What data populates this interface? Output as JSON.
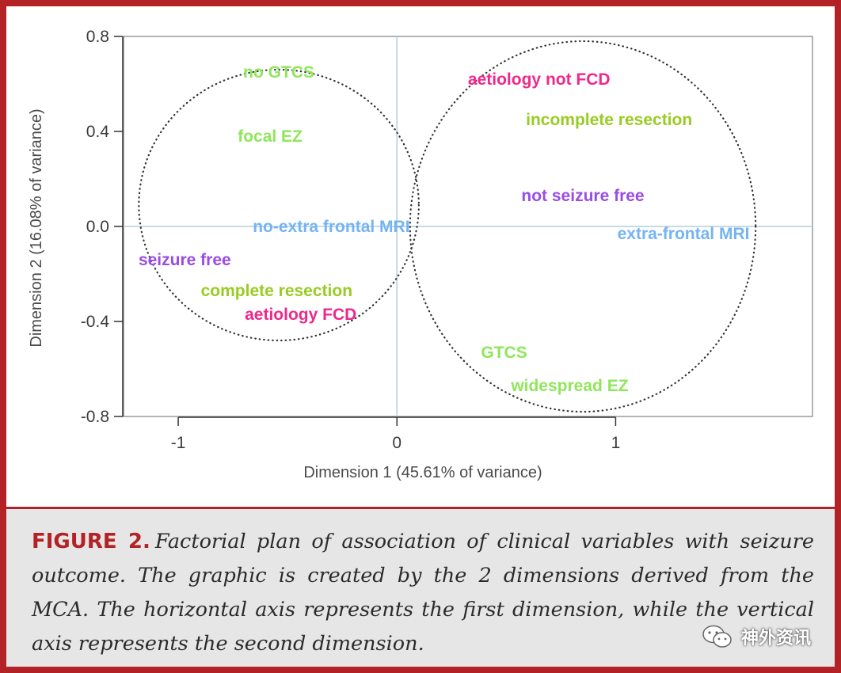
{
  "chart_data": {
    "type": "scatter",
    "xlabel": "Dimension 1 (45.61% of variance)",
    "ylabel": "Dimension 2 (16.08% of variance)",
    "xlim": [
      -1.25,
      1.9
    ],
    "ylim": [
      -0.8,
      0.8
    ],
    "x_ticks": [
      -1,
      0,
      1
    ],
    "x_tick_labels": [
      "-1",
      "0",
      "1"
    ],
    "y_ticks": [
      0.8,
      0.4,
      0.0,
      -0.4,
      -0.8
    ],
    "y_tick_labels": [
      "0.8",
      "0.4",
      "0.0",
      "-0.4",
      "-0.8"
    ],
    "reference_lines": {
      "x": 0,
      "y": 0
    },
    "points": [
      {
        "label": "no GTCS",
        "x": -0.54,
        "y": 0.65,
        "color": "#8ee65a"
      },
      {
        "label": "focal EZ",
        "x": -0.58,
        "y": 0.38,
        "color": "#8ee65a"
      },
      {
        "label": "no-extra frontal MRI",
        "x": -0.3,
        "y": 0.0,
        "color": "#74b4f4"
      },
      {
        "label": "seizure free",
        "x": -0.97,
        "y": -0.14,
        "color": "#9a4ce8"
      },
      {
        "label": "complete resection",
        "x": -0.55,
        "y": -0.27,
        "color": "#99cc22"
      },
      {
        "label": "aetiology FCD",
        "x": -0.44,
        "y": -0.37,
        "color": "#f0288c"
      },
      {
        "label": "aetiology not FCD",
        "x": 0.65,
        "y": 0.62,
        "color": "#f0288c"
      },
      {
        "label": "incomplete resection",
        "x": 0.97,
        "y": 0.45,
        "color": "#99cc22"
      },
      {
        "label": "not seizure free",
        "x": 0.85,
        "y": 0.13,
        "color": "#9a4ce8"
      },
      {
        "label": "extra-frontal MRI",
        "x": 1.31,
        "y": -0.03,
        "color": "#74b4f4"
      },
      {
        "label": "GTCS",
        "x": 0.49,
        "y": -0.53,
        "color": "#8ee65a"
      },
      {
        "label": "widespread EZ",
        "x": 0.79,
        "y": -0.67,
        "color": "#8ee65a"
      }
    ],
    "ellipses": [
      {
        "cx": -0.54,
        "cy": 0.09,
        "rx": 0.64,
        "ry": 0.57
      },
      {
        "cx": 0.85,
        "cy": 0.0,
        "rx": 0.79,
        "ry": 0.78
      }
    ],
    "grid": false,
    "legend": "none"
  },
  "caption": {
    "label": "FIGURE 2.",
    "text": "Factorial plan of association of clinical variables with seizure outcome. The graphic is created by the 2 dimensions derived from the MCA. The horizontal axis represents the first dimension, while the vertical axis represents the second dimension."
  },
  "watermark": {
    "text": "神外资讯",
    "icon": "wechat-icon"
  },
  "colors": {
    "frame": "#b32226",
    "caption_bg": "#e6e6e6"
  }
}
